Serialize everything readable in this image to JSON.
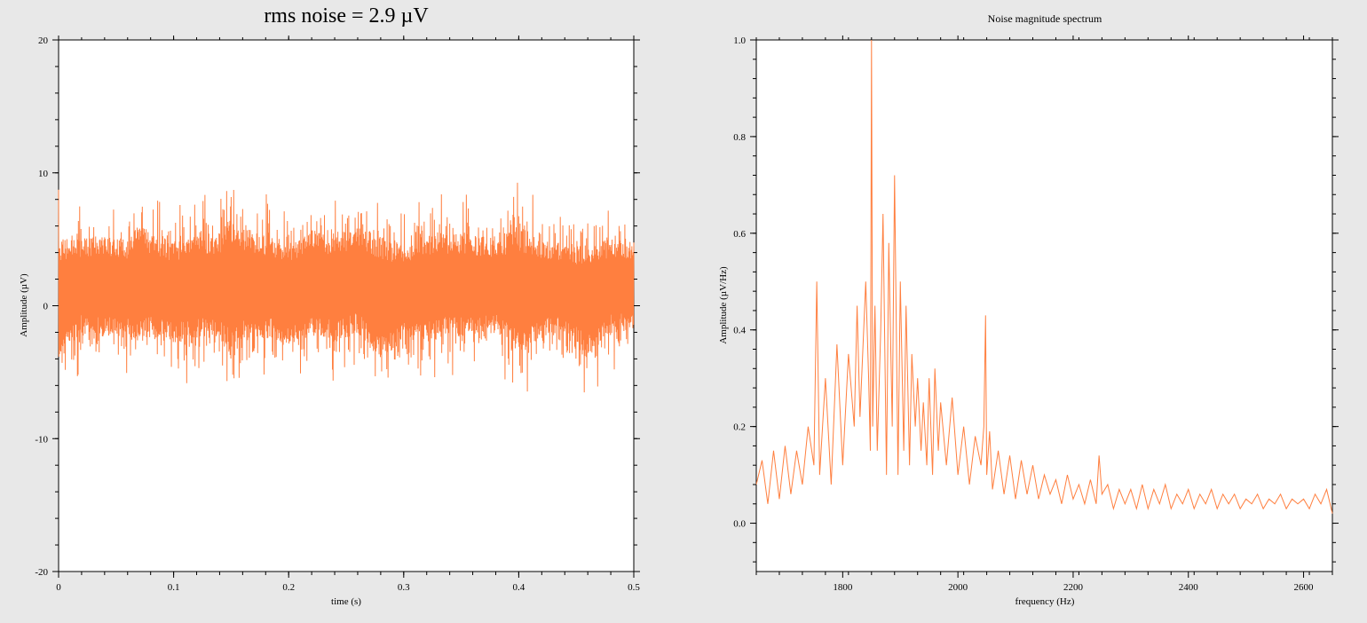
{
  "window": {
    "background": "#e8e8e8"
  },
  "charts": {
    "colors": {
      "trace": "#ff7f3f",
      "plot_bg": "#ffffff",
      "axis": "#000000"
    }
  },
  "chart_data": [
    {
      "type": "line",
      "title": "rms noise = 2.9 µV",
      "xlabel": "time (s)",
      "ylabel": "Amplitude (µV)",
      "xlim": [
        0,
        0.5
      ],
      "ylim": [
        -20,
        20
      ],
      "x_ticks": [
        0,
        0.1,
        0.2,
        0.3,
        0.4,
        0.5
      ],
      "x_tick_labels": [
        "0",
        "0.1",
        "0.2",
        "0.3",
        "0.4",
        "0.5"
      ],
      "y_ticks": [
        -20,
        -10,
        0,
        10,
        20
      ],
      "y_tick_labels": [
        "-20",
        "-10",
        "0",
        "10",
        "20"
      ],
      "grid": false,
      "series": [
        {
          "x": [
            0,
            0.02,
            0.04,
            0.06,
            0.07,
            0.08,
            0.1,
            0.12,
            0.14,
            0.15,
            0.16,
            0.18,
            0.2,
            0.22,
            0.24,
            0.26,
            0.28,
            0.3,
            0.32,
            0.34,
            0.36,
            0.38,
            0.4,
            0.42,
            0.44,
            0.46,
            0.48,
            0.5
          ],
          "upper": [
            8.5,
            7.5,
            8,
            7.5,
            9.9,
            8,
            7.5,
            8.5,
            8,
            11,
            9,
            8,
            7,
            8.5,
            8,
            9,
            8.6,
            7,
            8,
            8.2,
            8,
            7.5,
            9.6,
            7.5,
            7.2,
            7.5,
            7.5,
            7
          ],
          "lower": [
            -8.5,
            -5.5,
            -6,
            -6,
            -7.2,
            -6,
            -6.5,
            -6.5,
            -6,
            -9.2,
            -7,
            -6,
            -6.5,
            -6,
            -6.5,
            -6,
            -8.6,
            -6,
            -6.5,
            -6,
            -6,
            -5.5,
            -8.3,
            -6,
            -5.5,
            -8,
            -5.5,
            -5
          ]
        }
      ]
    },
    {
      "type": "line",
      "title": "Noise magnitude spectrum",
      "xlabel": "frequency (Hz)",
      "ylabel": "Amplitude (µV/Hz)",
      "xlim": [
        1650,
        2650
      ],
      "ylim": [
        -0.1,
        1.0
      ],
      "x_ticks": [
        1800,
        2000,
        2200,
        2400,
        2600
      ],
      "x_tick_labels": [
        "1800",
        "2000",
        "2200",
        "2400",
        "2600"
      ],
      "y_ticks": [
        0,
        0.2,
        0.4,
        0.6,
        0.8,
        1.0
      ],
      "y_tick_labels": [
        "0.0",
        "0.2",
        "0.4",
        "0.6",
        "0.8",
        "1.0"
      ],
      "grid": false,
      "series": [
        {
          "x": [
            1650,
            1660,
            1670,
            1680,
            1690,
            1700,
            1710,
            1720,
            1730,
            1740,
            1750,
            1755,
            1760,
            1770,
            1780,
            1790,
            1800,
            1810,
            1820,
            1825,
            1830,
            1840,
            1845,
            1848,
            1850,
            1852,
            1856,
            1860,
            1866,
            1870,
            1876,
            1880,
            1886,
            1890,
            1896,
            1900,
            1906,
            1910,
            1916,
            1920,
            1926,
            1930,
            1936,
            1940,
            1946,
            1950,
            1956,
            1960,
            1966,
            1970,
            1980,
            1990,
            2000,
            2010,
            2020,
            2030,
            2040,
            2045,
            2048,
            2050,
            2055,
            2060,
            2070,
            2080,
            2090,
            2100,
            2110,
            2120,
            2130,
            2140,
            2150,
            2160,
            2170,
            2180,
            2190,
            2200,
            2210,
            2220,
            2230,
            2240,
            2245,
            2250,
            2260,
            2270,
            2280,
            2290,
            2300,
            2310,
            2320,
            2330,
            2340,
            2350,
            2360,
            2370,
            2380,
            2390,
            2400,
            2410,
            2420,
            2430,
            2440,
            2450,
            2460,
            2470,
            2480,
            2490,
            2500,
            2510,
            2520,
            2530,
            2540,
            2550,
            2560,
            2570,
            2580,
            2590,
            2600,
            2610,
            2620,
            2630,
            2640,
            2650
          ],
          "y": [
            0.08,
            0.13,
            0.04,
            0.15,
            0.05,
            0.16,
            0.06,
            0.15,
            0.08,
            0.2,
            0.12,
            0.5,
            0.1,
            0.3,
            0.08,
            0.37,
            0.12,
            0.35,
            0.2,
            0.45,
            0.22,
            0.5,
            0.3,
            0.15,
            1.0,
            0.2,
            0.45,
            0.15,
            0.4,
            0.64,
            0.1,
            0.58,
            0.2,
            0.72,
            0.1,
            0.5,
            0.15,
            0.45,
            0.12,
            0.35,
            0.2,
            0.3,
            0.15,
            0.25,
            0.12,
            0.3,
            0.1,
            0.32,
            0.15,
            0.25,
            0.12,
            0.26,
            0.1,
            0.2,
            0.08,
            0.18,
            0.12,
            0.2,
            0.43,
            0.1,
            0.19,
            0.07,
            0.15,
            0.06,
            0.14,
            0.05,
            0.13,
            0.06,
            0.12,
            0.05,
            0.1,
            0.06,
            0.09,
            0.04,
            0.1,
            0.05,
            0.08,
            0.04,
            0.09,
            0.04,
            0.14,
            0.06,
            0.08,
            0.03,
            0.07,
            0.04,
            0.07,
            0.03,
            0.08,
            0.03,
            0.07,
            0.04,
            0.08,
            0.03,
            0.06,
            0.04,
            0.07,
            0.03,
            0.06,
            0.04,
            0.07,
            0.03,
            0.06,
            0.04,
            0.06,
            0.03,
            0.05,
            0.04,
            0.06,
            0.03,
            0.05,
            0.04,
            0.06,
            0.03,
            0.05,
            0.04,
            0.05,
            0.03,
            0.06,
            0.04,
            0.07,
            0.02
          ]
        }
      ]
    }
  ]
}
